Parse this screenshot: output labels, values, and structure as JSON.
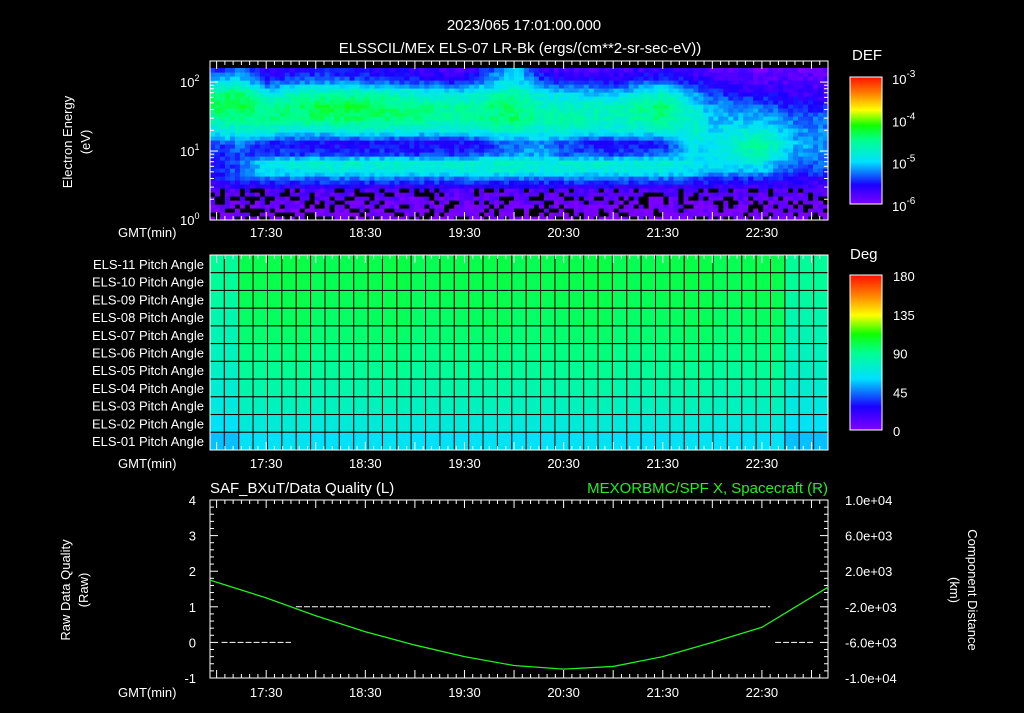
{
  "header": {
    "datetime": "2023/065 17:01:00.000",
    "title": "ELSSCIL/MEx ELS-07 LR-Bk  (ergs/(cm**2-sr-sec-eV))"
  },
  "time_axis": {
    "label": "GMT(min)",
    "ticks": [
      "17:30",
      "18:30",
      "19:30",
      "20:30",
      "21:30",
      "22:30"
    ],
    "tick_minutes": [
      1050,
      1110,
      1170,
      1230,
      1290,
      1350
    ],
    "range_minutes": [
      1016,
      1390
    ]
  },
  "colors": {
    "background": "#000000",
    "foreground": "#ffffff",
    "accent": "#22ee22"
  },
  "chart_data": [
    {
      "type": "heatmap",
      "name": "energy-spectrogram",
      "ylabel_line1": "Electron Energy",
      "ylabel_line2": "(eV)",
      "y_ticks": [
        {
          "base": "10",
          "exp": "0"
        },
        {
          "base": "10",
          "exp": "1"
        },
        {
          "base": "10",
          "exp": "2"
        }
      ],
      "yscale": "log",
      "ylim": [
        1,
        160
      ],
      "colorbar": {
        "label": "DEF",
        "scale": "log",
        "range_log10": [
          -6,
          -3
        ],
        "ticks": [
          {
            "base": "10",
            "exp": "-3"
          },
          {
            "base": "10",
            "exp": "-4"
          },
          {
            "base": "10",
            "exp": "-5"
          },
          {
            "base": "10",
            "exp": "-6"
          }
        ]
      },
      "times_minutes": [
        1016,
        1035,
        1050,
        1080,
        1110,
        1140,
        1170,
        1200,
        1215,
        1230,
        1260,
        1290,
        1310,
        1320,
        1350,
        1370,
        1390
      ],
      "energies_eV": [
        1.2,
        1.8,
        2.7,
        4,
        5,
        7,
        9,
        13,
        20,
        30,
        45,
        70,
        110,
        160
      ],
      "log10_def": [
        [
          -6.0,
          -5.9,
          -5.8,
          -5.6,
          -5.6,
          -5.6,
          -5.5,
          -5.5,
          -4.9,
          -4.6,
          -4.3,
          -4.5,
          -5.1,
          -5.5
        ],
        [
          -6.0,
          -5.9,
          -5.8,
          -5.4,
          -5.3,
          -5.3,
          -5.4,
          -5.2,
          -4.8,
          -4.5,
          -4.3,
          -4.4,
          -5.0,
          -5.4
        ],
        [
          -6.0,
          -5.9,
          -5.8,
          -5.3,
          -5.0,
          -4.9,
          -5.4,
          -5.5,
          -4.8,
          -4.5,
          -4.6,
          -4.9,
          -5.5,
          -5.7
        ],
        [
          -6.0,
          -5.9,
          -5.8,
          -5.3,
          -4.9,
          -4.8,
          -5.4,
          -5.6,
          -4.9,
          -4.4,
          -4.3,
          -4.6,
          -5.3,
          -5.6
        ],
        [
          -6.0,
          -5.9,
          -5.8,
          -5.3,
          -4.9,
          -4.8,
          -5.4,
          -5.6,
          -4.8,
          -4.4,
          -4.3,
          -4.6,
          -5.4,
          -5.6
        ],
        [
          -6.0,
          -5.9,
          -5.8,
          -5.3,
          -4.9,
          -4.8,
          -5.4,
          -5.6,
          -4.9,
          -4.5,
          -4.5,
          -4.8,
          -5.5,
          -5.7
        ],
        [
          -6.0,
          -5.9,
          -5.8,
          -5.3,
          -4.9,
          -4.8,
          -5.4,
          -5.6,
          -4.9,
          -4.6,
          -4.6,
          -4.9,
          -5.6,
          -5.8
        ],
        [
          -6.0,
          -5.9,
          -5.8,
          -5.3,
          -4.8,
          -4.7,
          -5.2,
          -5.3,
          -4.7,
          -4.4,
          -4.4,
          -4.6,
          -4.9,
          -5.0
        ],
        [
          -6.0,
          -5.9,
          -5.8,
          -5.3,
          -4.9,
          -4.8,
          -5.1,
          -5.2,
          -4.8,
          -4.6,
          -4.7,
          -4.9,
          -5.4,
          -5.6
        ],
        [
          -6.0,
          -5.9,
          -5.8,
          -5.3,
          -4.9,
          -4.8,
          -5.3,
          -5.4,
          -4.8,
          -4.6,
          -4.7,
          -5.0,
          -5.6,
          -5.8
        ],
        [
          -6.0,
          -5.9,
          -5.8,
          -5.3,
          -4.9,
          -4.8,
          -5.4,
          -5.6,
          -4.9,
          -4.7,
          -4.7,
          -5.1,
          -5.6,
          -5.8
        ],
        [
          -6.0,
          -5.9,
          -5.8,
          -5.3,
          -4.9,
          -4.8,
          -5.3,
          -5.5,
          -4.8,
          -4.5,
          -4.4,
          -4.7,
          -5.4,
          -5.7
        ],
        [
          -6.0,
          -5.9,
          -5.8,
          -5.4,
          -5.0,
          -4.9,
          -5.0,
          -4.9,
          -4.8,
          -4.8,
          -4.9,
          -5.2,
          -5.6,
          -5.8
        ],
        [
          -6.0,
          -5.9,
          -5.8,
          -5.4,
          -5.1,
          -5.0,
          -5.0,
          -4.9,
          -5.0,
          -5.1,
          -5.2,
          -5.4,
          -5.7,
          -5.8
        ],
        [
          -6.0,
          -5.9,
          -5.8,
          -5.5,
          -5.1,
          -4.9,
          -4.6,
          -4.5,
          -4.8,
          -5.1,
          -5.3,
          -5.6,
          -5.8,
          -5.9
        ],
        [
          -6.0,
          -5.9,
          -5.8,
          -5.6,
          -5.4,
          -5.3,
          -5.2,
          -5.1,
          -5.2,
          -5.3,
          -5.5,
          -5.7,
          -5.8,
          -5.9
        ],
        [
          -6.0,
          -5.9,
          -5.8,
          -5.6,
          -5.4,
          -5.3,
          -5.2,
          -5.2,
          -5.2,
          -5.3,
          -5.5,
          -5.7,
          -5.8,
          -5.9
        ]
      ]
    },
    {
      "type": "heatmap",
      "name": "pitch-angle",
      "rows": [
        "ELS-11 Pitch Angle",
        "ELS-10 Pitch Angle",
        "ELS-09 Pitch Angle",
        "ELS-08 Pitch Angle",
        "ELS-07 Pitch Angle",
        "ELS-06 Pitch Angle",
        "ELS-05 Pitch Angle",
        "ELS-04 Pitch Angle",
        "ELS-03 Pitch Angle",
        "ELS-02 Pitch Angle",
        "ELS-01 Pitch Angle"
      ],
      "row_values_deg": [
        100,
        100,
        99,
        97,
        95,
        92,
        88,
        83,
        78,
        70,
        62
      ],
      "edge_values_deg": [
        88,
        88,
        85,
        82,
        80,
        78,
        75,
        72,
        68,
        62,
        55
      ],
      "columns": 43,
      "colorbar": {
        "label": "Deg",
        "range": [
          0,
          180
        ],
        "ticks": [
          "180",
          "135",
          "90",
          "45",
          "0"
        ]
      }
    },
    {
      "type": "line",
      "name": "quality-and-position",
      "left_title": "SAF_BXuT/Data Quality (L)",
      "right_title": "MEXORBMC/SPF X, Spacecraft (R)",
      "left_ylabel_line1": "Raw Data Quality",
      "left_ylabel_line2": "(Raw)",
      "right_ylabel_line1": "Component Distance",
      "right_ylabel_line2": "(km)",
      "left_ylim": [
        -1,
        4
      ],
      "left_ticks": [
        "4",
        "3",
        "2",
        "1",
        "0",
        "-1"
      ],
      "right_ylim": [
        -10000,
        10000
      ],
      "right_ticks": [
        "1.0e+04",
        "6.0e+03",
        "2.0e+03",
        "-2.0e+03",
        "-6.0e+03",
        "-1.0e+04"
      ],
      "data_quality_segments": [
        {
          "start": 1023,
          "end": 1065,
          "value": 0
        },
        {
          "start": 1068,
          "end": 1355,
          "value": 1
        },
        {
          "start": 1358,
          "end": 1381,
          "value": 0
        }
      ],
      "spf_x": {
        "minutes": [
          1016,
          1050,
          1080,
          1110,
          1140,
          1170,
          1200,
          1230,
          1260,
          1290,
          1320,
          1350,
          1390
        ],
        "km": [
          1000,
          -1000,
          -3000,
          -4800,
          -6300,
          -7600,
          -8600,
          -9000,
          -8700,
          -7600,
          -6000,
          -4300,
          200
        ]
      }
    }
  ]
}
